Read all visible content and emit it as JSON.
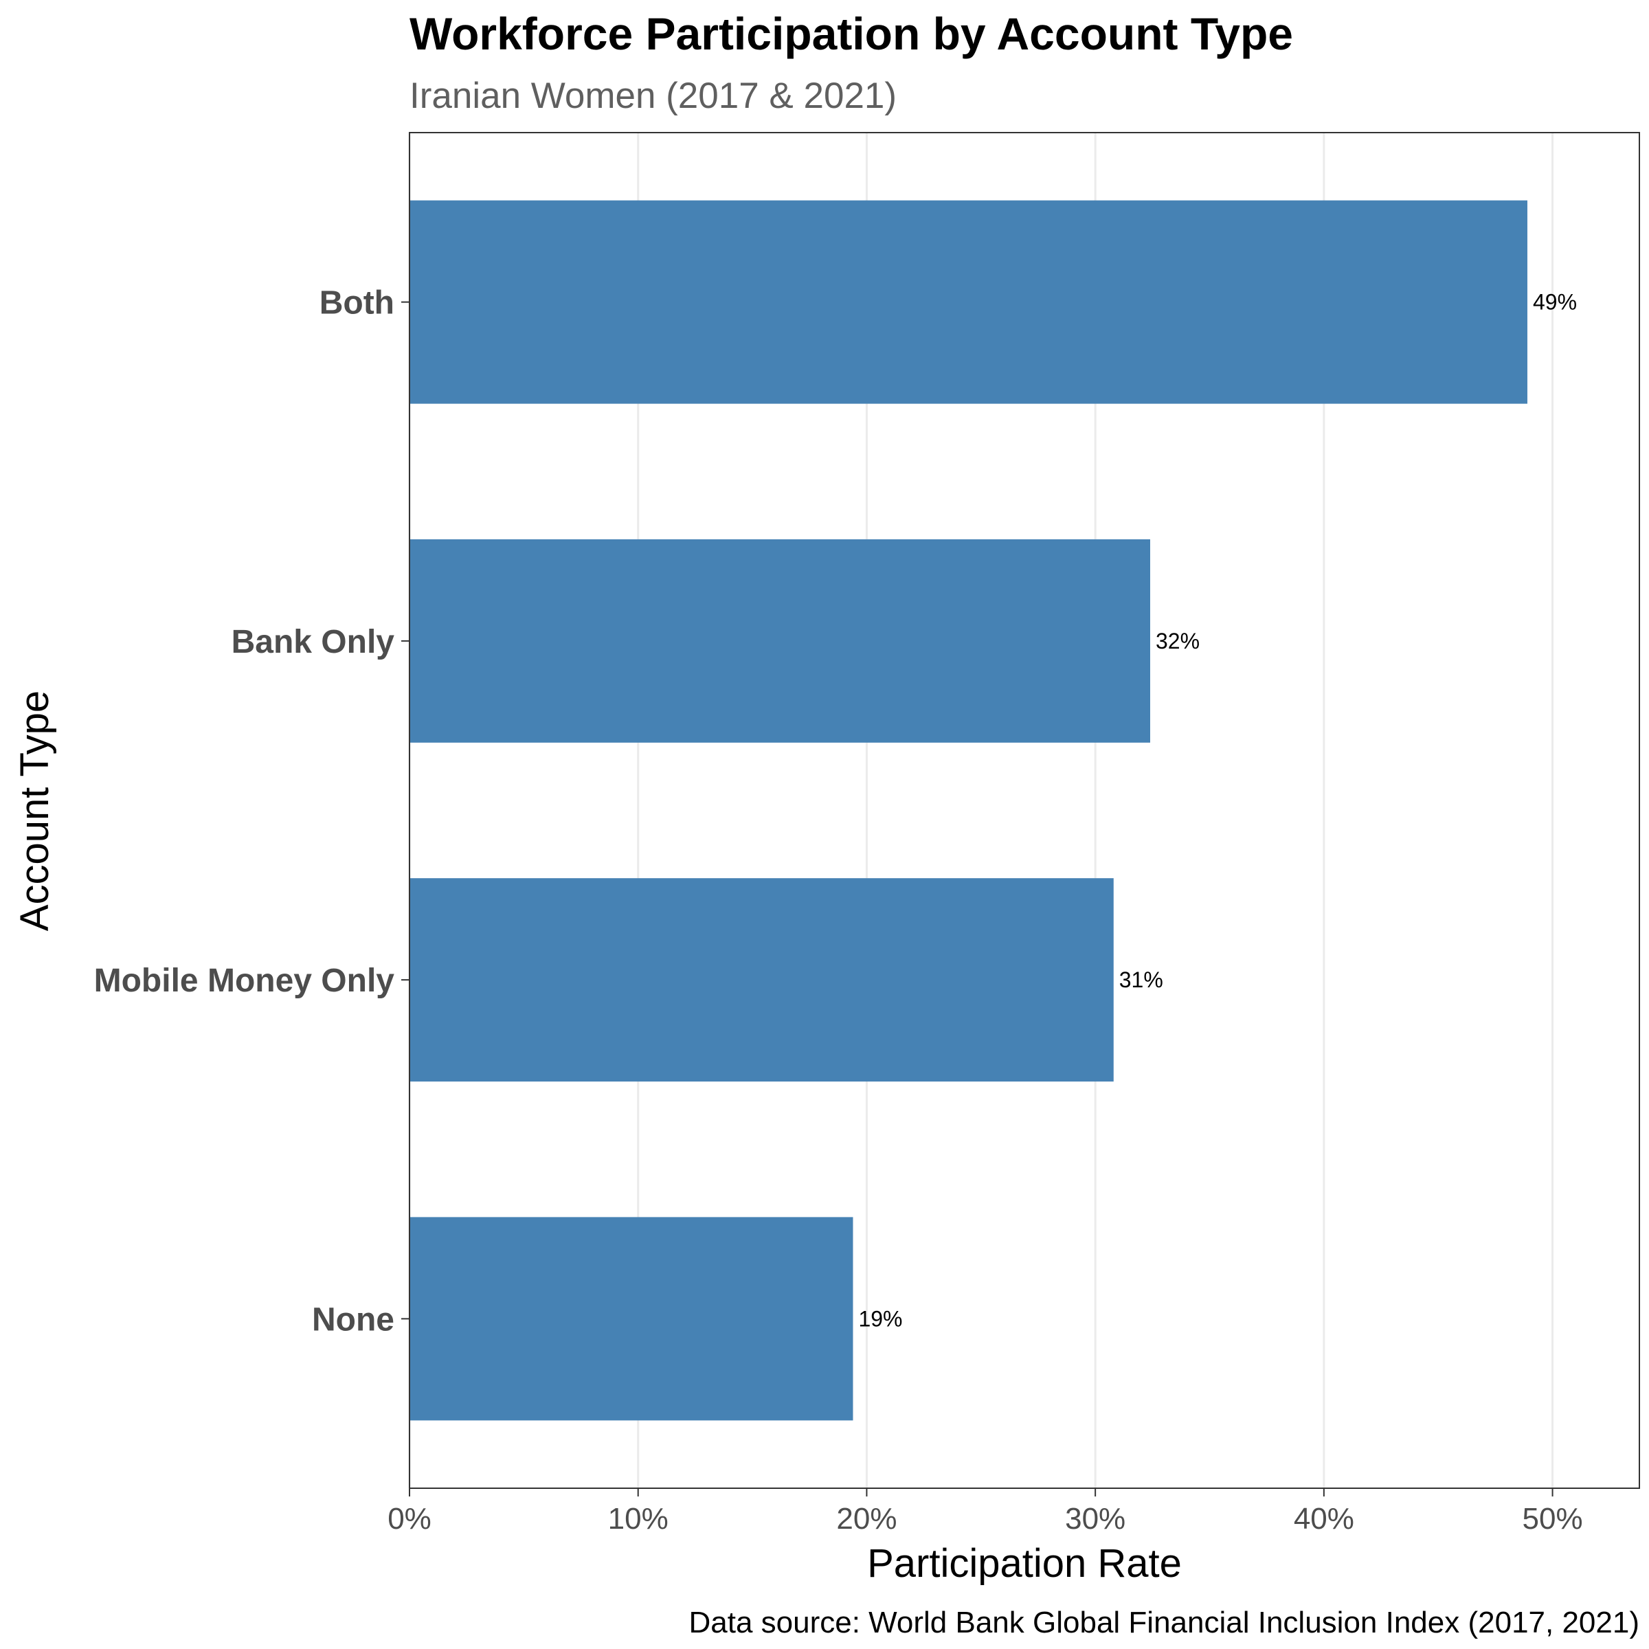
{
  "chart_data": {
    "type": "bar",
    "orientation": "horizontal",
    "title": "Workforce Participation by Account Type",
    "subtitle": "Iranian Women (2017 & 2021)",
    "xlabel": "Participation Rate",
    "ylabel": "Account Type",
    "caption": "Data source: World Bank Global Financial Inclusion Index (2017, 2021)",
    "categories": [
      "Both",
      "Bank Only",
      "Mobile Money Only",
      "None"
    ],
    "values": [
      48.9,
      32.4,
      30.8,
      19.4
    ],
    "data_labels": [
      "49%",
      "32%",
      "31%",
      "19%"
    ],
    "xlim": [
      0,
      53.8
    ],
    "x_ticks": [
      0,
      10,
      20,
      30,
      40,
      50
    ],
    "x_tick_labels": [
      "0%",
      "10%",
      "20%",
      "30%",
      "40%",
      "50%"
    ],
    "grid": "vertical",
    "legend": "none",
    "bar_color": "#4682b4",
    "gridline_color": "#ebebeb",
    "panel_border_color": "#333333"
  }
}
